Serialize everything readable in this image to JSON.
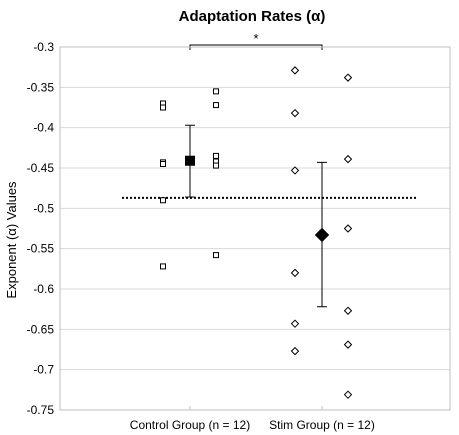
{
  "chart_data": {
    "type": "scatter",
    "title": "Adaptation Rates (α)",
    "ylabel": "Exponent (α) Values",
    "xlabel": "",
    "ylim": [
      -0.75,
      -0.3
    ],
    "yticks": [
      -0.3,
      -0.35,
      -0.4,
      -0.45,
      -0.5,
      -0.55,
      -0.6,
      -0.65,
      -0.7,
      -0.75
    ],
    "ytick_labels": [
      "-0.3",
      "-0.35",
      "-0.4",
      "-0.45",
      "-0.5",
      "-0.55",
      "-0.6",
      "-0.65",
      "-0.7",
      "-0.75"
    ],
    "grid": "horizontal",
    "categories": [
      "Control Group (n = 12)",
      "Stim Group (n = 12)"
    ],
    "reference_line": {
      "y": -0.487,
      "style": "dotted"
    },
    "significance": {
      "from": 0,
      "to": 1,
      "label": "*"
    },
    "groups": [
      {
        "category": "Control Group (n = 12)",
        "marker": "square",
        "left_points": [
          -0.37,
          -0.375,
          -0.443,
          -0.445,
          -0.49,
          -0.572
        ],
        "right_points": [
          -0.355,
          -0.372,
          -0.435,
          -0.442,
          -0.447,
          -0.558
        ],
        "mean": -0.441,
        "error_upper": -0.397,
        "error_lower": -0.486
      },
      {
        "category": "Stim Group (n = 12)",
        "marker": "diamond",
        "left_points": [
          -0.329,
          -0.382,
          -0.453,
          -0.58,
          -0.643,
          -0.677
        ],
        "right_points": [
          -0.338,
          -0.439,
          -0.525,
          -0.627,
          -0.669,
          -0.731
        ],
        "mean": -0.533,
        "error_upper": -0.443,
        "error_lower": -0.622
      }
    ]
  }
}
